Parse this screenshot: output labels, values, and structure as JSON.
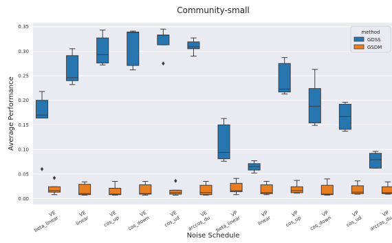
{
  "chart_data": {
    "type": "box",
    "title": "Community-small",
    "xlabel": "Noise Schedule",
    "ylabel": "Average Performance",
    "ylim": [
      -0.012,
      0.358
    ],
    "yticks": [
      0.0,
      0.05,
      0.1,
      0.15,
      0.2,
      0.25,
      0.3,
      0.35
    ],
    "ytick_labels": [
      "0.00",
      "0.05",
      "0.10",
      "0.15",
      "0.20",
      "0.25",
      "0.30",
      "0.35"
    ],
    "grid": true,
    "legend_position": "top-right",
    "legend_title": "method",
    "categories": [
      [
        "VE",
        "beta_linear"
      ],
      [
        "VE",
        "linear"
      ],
      [
        "VE",
        "cos_up"
      ],
      [
        "VE",
        "cos_down"
      ],
      [
        "VE",
        "cos_ud"
      ],
      [
        "VE",
        "arccos_du"
      ],
      [
        "VP",
        "beta_linear"
      ],
      [
        "VP",
        "linear"
      ],
      [
        "VP",
        "cos_up"
      ],
      [
        "VP",
        "cos_down"
      ],
      [
        "VP",
        "cos_ud"
      ],
      [
        "VP",
        "arccos_du"
      ]
    ],
    "series": [
      {
        "name": "GDSS",
        "color": "#2876b0",
        "boxes": [
          {
            "whislo": 0.164,
            "q1": 0.164,
            "med": 0.17,
            "q3": 0.2,
            "whishi": 0.218,
            "fliers": [
              0.06
            ]
          },
          {
            "whislo": 0.232,
            "q1": 0.24,
            "med": 0.246,
            "q3": 0.291,
            "whishi": 0.305,
            "fliers": []
          },
          {
            "whislo": 0.272,
            "q1": 0.276,
            "med": 0.293,
            "q3": 0.327,
            "whishi": 0.343,
            "fliers": []
          },
          {
            "whislo": 0.262,
            "q1": 0.271,
            "med": 0.338,
            "q3": 0.339,
            "whishi": 0.341,
            "fliers": []
          },
          {
            "whislo": 0.313,
            "q1": 0.313,
            "med": 0.332,
            "q3": 0.333,
            "whishi": 0.345,
            "fliers": [
              0.275
            ]
          },
          {
            "whislo": 0.29,
            "q1": 0.305,
            "med": 0.309,
            "q3": 0.319,
            "whishi": 0.327,
            "fliers": []
          },
          {
            "whislo": 0.076,
            "q1": 0.081,
            "med": 0.094,
            "q3": 0.15,
            "whishi": 0.163,
            "fliers": []
          },
          {
            "whislo": 0.052,
            "q1": 0.058,
            "med": 0.065,
            "q3": 0.071,
            "whishi": 0.077,
            "fliers": []
          },
          {
            "whislo": 0.213,
            "q1": 0.217,
            "med": 0.223,
            "q3": 0.275,
            "whishi": 0.287,
            "fliers": []
          },
          {
            "whislo": 0.149,
            "q1": 0.154,
            "med": 0.188,
            "q3": 0.224,
            "whishi": 0.263,
            "fliers": []
          },
          {
            "whislo": 0.137,
            "q1": 0.141,
            "med": 0.167,
            "q3": 0.192,
            "whishi": 0.196,
            "fliers": []
          },
          {
            "whislo": 0.062,
            "q1": 0.062,
            "med": 0.079,
            "q3": 0.092,
            "whishi": 0.096,
            "fliers": []
          }
        ]
      },
      {
        "name": "GSDM",
        "color": "#e87e22",
        "boxes": [
          {
            "whislo": 0.008,
            "q1": 0.013,
            "med": 0.016,
            "q3": 0.024,
            "whishi": 0.024,
            "fliers": [
              0.042
            ]
          },
          {
            "whislo": 0.007,
            "q1": 0.008,
            "med": 0.01,
            "q3": 0.029,
            "whishi": 0.034,
            "fliers": []
          },
          {
            "whislo": 0.007,
            "q1": 0.008,
            "med": 0.009,
            "q3": 0.021,
            "whishi": 0.035,
            "fliers": []
          },
          {
            "whislo": 0.007,
            "q1": 0.009,
            "med": 0.01,
            "q3": 0.028,
            "whishi": 0.035,
            "fliers": []
          },
          {
            "whislo": 0.007,
            "q1": 0.009,
            "med": 0.012,
            "q3": 0.017,
            "whishi": 0.017,
            "fliers": [
              0.036
            ]
          },
          {
            "whislo": 0.007,
            "q1": 0.008,
            "med": 0.012,
            "q3": 0.027,
            "whishi": 0.035,
            "fliers": []
          },
          {
            "whislo": 0.008,
            "q1": 0.014,
            "med": 0.016,
            "q3": 0.031,
            "whishi": 0.041,
            "fliers": []
          },
          {
            "whislo": 0.008,
            "q1": 0.01,
            "med": 0.012,
            "q3": 0.028,
            "whishi": 0.035,
            "fliers": []
          },
          {
            "whislo": 0.011,
            "q1": 0.012,
            "med": 0.016,
            "q3": 0.024,
            "whishi": 0.037,
            "fliers": []
          },
          {
            "whislo": 0.007,
            "q1": 0.008,
            "med": 0.009,
            "q3": 0.027,
            "whishi": 0.04,
            "fliers": []
          },
          {
            "whislo": 0.009,
            "q1": 0.01,
            "med": 0.013,
            "q3": 0.026,
            "whishi": 0.036,
            "fliers": []
          },
          {
            "whislo": 0.009,
            "q1": 0.01,
            "med": 0.012,
            "q3": 0.024,
            "whishi": 0.034,
            "fliers": []
          }
        ]
      }
    ]
  }
}
